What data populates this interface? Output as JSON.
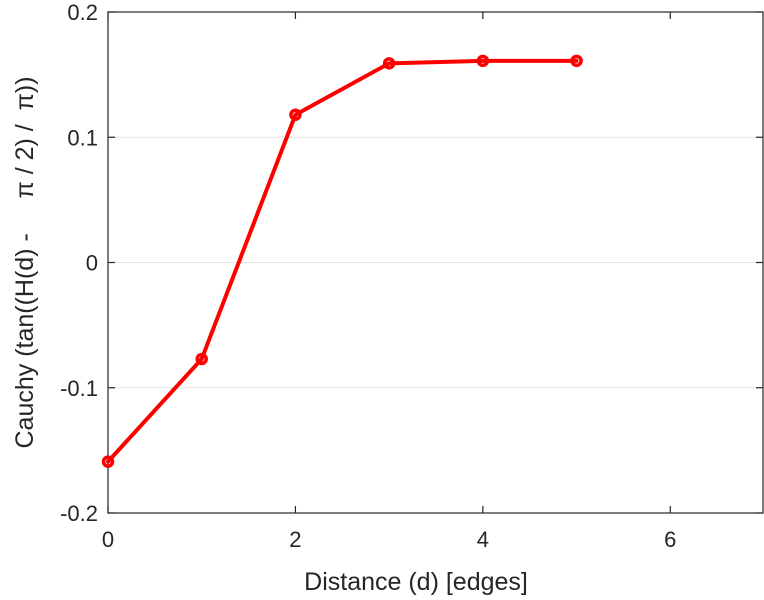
{
  "chart_data": {
    "type": "line",
    "title": "",
    "xlabel": "Distance (d) [edges]",
    "ylabel": "Cauchy (tan((H(d) -     π / 2) /  π))",
    "xlim": [
      0,
      7
    ],
    "ylim": [
      -0.2,
      0.2
    ],
    "xticks": [
      0,
      2,
      4,
      6
    ],
    "yticks": [
      -0.2,
      -0.1,
      0,
      0.1,
      0.2
    ],
    "xtick_labels": [
      "0",
      "2",
      "4",
      "6"
    ],
    "ytick_labels": [
      "-0.2",
      "-0.1",
      "0",
      "0.1",
      "0.2"
    ],
    "grid": true,
    "series": [
      {
        "color": "#ff0000",
        "marker": "circle",
        "x": [
          0,
          1,
          2,
          3,
          4,
          5
        ],
        "y": [
          -0.159,
          -0.077,
          0.118,
          0.159,
          0.161,
          0.161
        ]
      }
    ]
  }
}
